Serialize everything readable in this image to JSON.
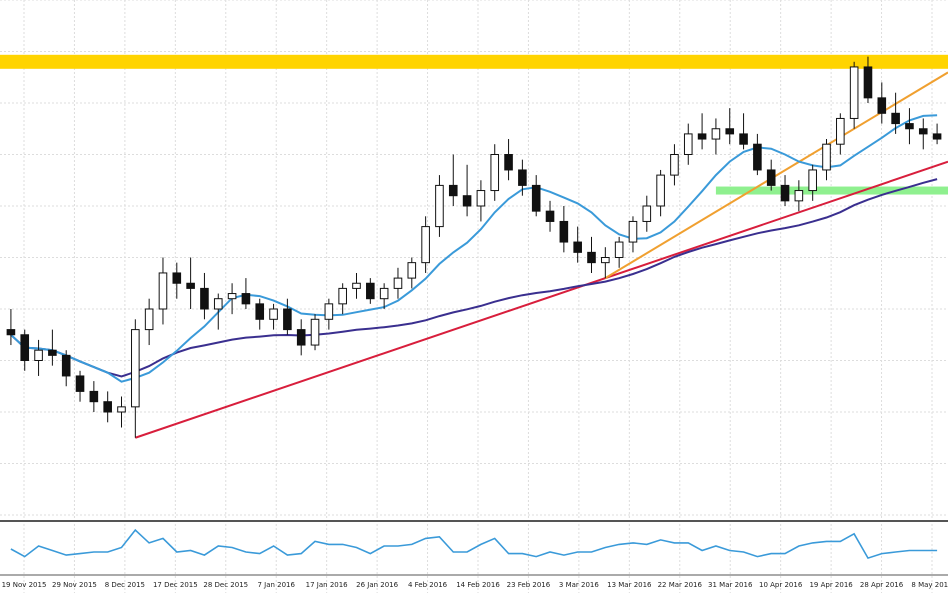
{
  "chart_data": {
    "type": "candlestick",
    "x_tick_labels": [
      "19 Nov 2015",
      "29 Nov 2015",
      "8 Dec 2015",
      "17 Dec 2015",
      "28 Dec 2015",
      "7 Jan 2016",
      "17 Jan 2016",
      "26 Jan 2016",
      "4 Feb 2016",
      "14 Feb 2016",
      "23 Feb 2016",
      "3 Mar 2016",
      "13 Mar 2016",
      "22 Mar 2016",
      "31 Mar 2016",
      "10 Apr 2016",
      "19 Apr 2016",
      "28 Apr 2016",
      "8 May 2016"
    ],
    "y_range": [
      0,
      100
    ],
    "ohlc": [
      [
        36,
        40,
        33,
        35
      ],
      [
        35,
        36,
        28,
        30
      ],
      [
        30,
        34,
        27,
        32
      ],
      [
        32,
        36,
        29,
        31
      ],
      [
        31,
        32,
        25,
        27
      ],
      [
        27,
        28,
        22,
        24
      ],
      [
        24,
        26,
        20,
        22
      ],
      [
        22,
        24,
        18,
        20
      ],
      [
        20,
        23,
        17,
        21
      ],
      [
        21,
        38,
        15,
        36
      ],
      [
        36,
        42,
        33,
        40
      ],
      [
        40,
        50,
        37,
        47
      ],
      [
        47,
        49,
        42,
        45
      ],
      [
        45,
        50,
        40,
        44
      ],
      [
        44,
        47,
        38,
        40
      ],
      [
        40,
        43,
        36,
        42
      ],
      [
        42,
        45,
        39,
        43
      ],
      [
        43,
        46,
        40,
        41
      ],
      [
        41,
        42,
        36,
        38
      ],
      [
        38,
        41,
        36,
        40
      ],
      [
        40,
        42,
        35,
        36
      ],
      [
        36,
        38,
        31,
        33
      ],
      [
        33,
        39,
        32,
        38
      ],
      [
        38,
        42,
        36,
        41
      ],
      [
        41,
        45,
        39,
        44
      ],
      [
        44,
        47,
        42,
        45
      ],
      [
        45,
        46,
        41,
        42
      ],
      [
        42,
        45,
        40,
        44
      ],
      [
        44,
        48,
        42,
        46
      ],
      [
        46,
        50,
        44,
        49
      ],
      [
        49,
        58,
        47,
        56
      ],
      [
        56,
        66,
        54,
        64
      ],
      [
        64,
        70,
        60,
        62
      ],
      [
        62,
        68,
        58,
        60
      ],
      [
        60,
        65,
        57,
        63
      ],
      [
        63,
        72,
        61,
        70
      ],
      [
        70,
        73,
        65,
        67
      ],
      [
        67,
        69,
        62,
        64
      ],
      [
        64,
        66,
        58,
        59
      ],
      [
        59,
        61,
        55,
        57
      ],
      [
        57,
        60,
        51,
        53
      ],
      [
        53,
        56,
        49,
        51
      ],
      [
        51,
        54,
        47,
        49
      ],
      [
        49,
        52,
        46,
        50
      ],
      [
        50,
        54,
        48,
        53
      ],
      [
        53,
        58,
        51,
        57
      ],
      [
        57,
        62,
        55,
        60
      ],
      [
        60,
        67,
        58,
        66
      ],
      [
        66,
        72,
        64,
        70
      ],
      [
        70,
        76,
        68,
        74
      ],
      [
        74,
        78,
        71,
        73
      ],
      [
        73,
        77,
        70,
        75
      ],
      [
        75,
        79,
        72,
        74
      ],
      [
        74,
        78,
        71,
        72
      ],
      [
        72,
        74,
        66,
        67
      ],
      [
        67,
        69,
        63,
        64
      ],
      [
        64,
        66,
        60,
        61
      ],
      [
        61,
        65,
        59,
        63
      ],
      [
        63,
        68,
        61,
        67
      ],
      [
        67,
        73,
        65,
        72
      ],
      [
        72,
        78,
        70,
        77
      ],
      [
        77,
        88,
        75,
        87
      ],
      [
        87,
        89,
        80,
        81
      ],
      [
        81,
        84,
        76,
        78
      ],
      [
        78,
        82,
        74,
        76
      ],
      [
        76,
        79,
        72,
        75
      ],
      [
        75,
        77,
        71,
        74
      ],
      [
        74,
        76,
        72,
        73
      ]
    ],
    "indicators": [
      "moving-average-short",
      "moving-average-long",
      "oscillator"
    ],
    "horizontal_levels": [
      {
        "name": "resistance-zone",
        "value": 88,
        "color": "#ffd400"
      },
      {
        "name": "support-zone",
        "value": 63,
        "color": "#8ff08f"
      }
    ],
    "trendlines": [
      {
        "name": "long-term-trendline",
        "color": "#d81e3c"
      },
      {
        "name": "short-term-trendline",
        "color": "#f0a030"
      }
    ],
    "colors": {
      "candle": "#111111",
      "ma_short": "#3a9ad9",
      "ma_long": "#3a2f8f",
      "oscillator": "#3a9ad9"
    },
    "grid": true
  }
}
